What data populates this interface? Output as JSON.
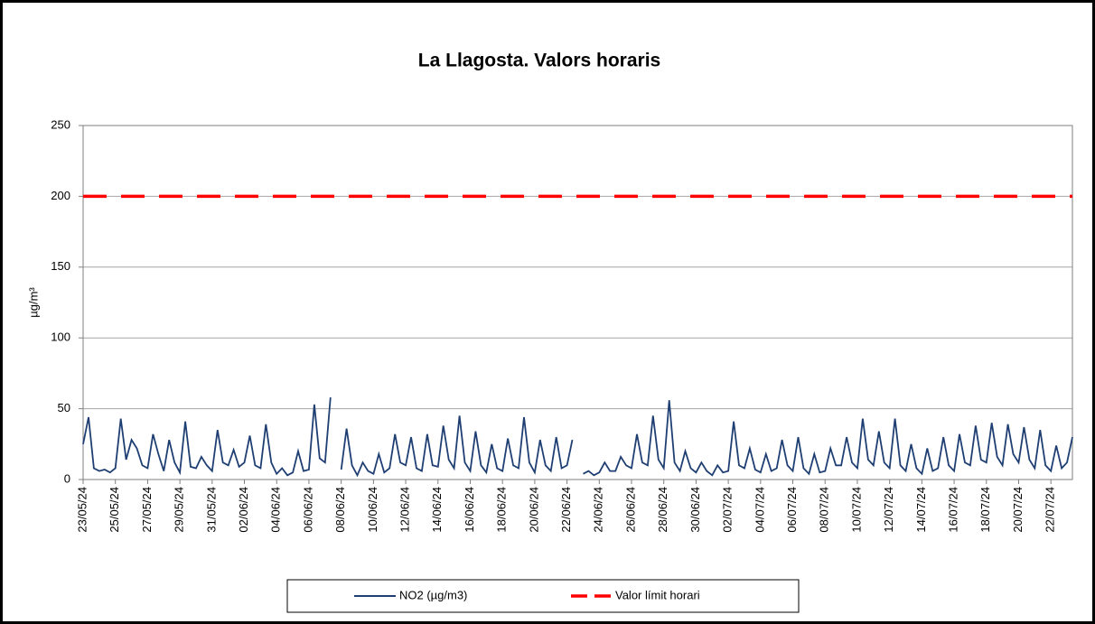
{
  "chart_data": {
    "type": "line",
    "title": "La Llagosta. Valors horaris",
    "y_label": "µg/m³",
    "categories": [
      "23/05/24",
      null,
      null,
      null,
      null,
      null,
      "25/05/24",
      null,
      null,
      null,
      null,
      null,
      "27/05/24",
      null,
      null,
      null,
      null,
      null,
      "29/05/24",
      null,
      null,
      null,
      null,
      null,
      "31/05/24",
      null,
      null,
      null,
      null,
      null,
      "02/06/24",
      null,
      null,
      null,
      null,
      null,
      "04/06/24",
      null,
      null,
      null,
      null,
      null,
      "06/06/24",
      null,
      null,
      null,
      null,
      null,
      "08/06/24",
      null,
      null,
      null,
      null,
      null,
      "10/06/24",
      null,
      null,
      null,
      null,
      null,
      "12/06/24",
      null,
      null,
      null,
      null,
      null,
      "14/06/24",
      null,
      null,
      null,
      null,
      null,
      "16/06/24",
      null,
      null,
      null,
      null,
      null,
      "18/06/24",
      null,
      null,
      null,
      null,
      null,
      "20/06/24",
      null,
      null,
      null,
      null,
      null,
      "22/06/24",
      null,
      null,
      null,
      null,
      null,
      "24/06/24",
      null,
      null,
      null,
      null,
      null,
      "26/06/24",
      null,
      null,
      null,
      null,
      null,
      "28/06/24",
      null,
      null,
      null,
      null,
      null,
      "30/06/24",
      null,
      null,
      null,
      null,
      null,
      "02/07/24",
      null,
      null,
      null,
      null,
      null,
      "04/07/24",
      null,
      null,
      null,
      null,
      null,
      "06/07/24",
      null,
      null,
      null,
      null,
      null,
      "08/07/24",
      null,
      null,
      null,
      null,
      null,
      "10/07/24",
      null,
      null,
      null,
      null,
      null,
      "12/07/24",
      null,
      null,
      null,
      null,
      null,
      "14/07/24",
      null,
      null,
      null,
      null,
      null,
      "16/07/24",
      null,
      null,
      null,
      null,
      null,
      "18/07/24",
      null,
      null,
      null,
      null,
      null,
      "20/07/24",
      null,
      null,
      null,
      null,
      null,
      "22/07/24",
      null,
      null,
      null,
      null
    ],
    "series": [
      {
        "name": "NO2 (µg/m3)",
        "color": "#1f3f73",
        "values": [
          25,
          44,
          8,
          6,
          7,
          5,
          8,
          43,
          14,
          28,
          22,
          10,
          8,
          32,
          18,
          6,
          28,
          12,
          5,
          41,
          9,
          8,
          16,
          10,
          6,
          35,
          12,
          10,
          21,
          9,
          12,
          31,
          10,
          8,
          39,
          12,
          4,
          8,
          3,
          5,
          20,
          6,
          7,
          53,
          15,
          12,
          58,
          null,
          7,
          36,
          10,
          3,
          12,
          6,
          4,
          18,
          5,
          8,
          32,
          12,
          10,
          30,
          8,
          6,
          32,
          10,
          9,
          38,
          14,
          8,
          45,
          12,
          6,
          34,
          10,
          5,
          25,
          8,
          6,
          29,
          10,
          8,
          44,
          12,
          5,
          28,
          10,
          6,
          30,
          8,
          10,
          28,
          null,
          4,
          6,
          3,
          5,
          12,
          6,
          6,
          16,
          10,
          8,
          32,
          12,
          10,
          45,
          14,
          8,
          56,
          12,
          6,
          20,
          8,
          5,
          12,
          6,
          3,
          10,
          5,
          6,
          41,
          10,
          8,
          22,
          7,
          5,
          18,
          6,
          8,
          28,
          10,
          6,
          30,
          8,
          4,
          18,
          5,
          6,
          22,
          10,
          10,
          30,
          12,
          8,
          43,
          14,
          10,
          34,
          12,
          8,
          43,
          10,
          6,
          25,
          8,
          4,
          22,
          6,
          8,
          30,
          10,
          6,
          32,
          12,
          10,
          38,
          14,
          12,
          40,
          16,
          10,
          39,
          18,
          12,
          37,
          14,
          8,
          35,
          10,
          6,
          24,
          8,
          12,
          30
        ]
      }
    ],
    "hline": {
      "name": "Valor límit horari",
      "value": 200,
      "color": "#ff0000"
    },
    "ylim": [
      0,
      250
    ],
    "yticks": [
      0,
      50,
      100,
      150,
      200,
      250
    ],
    "grid": true,
    "legend": "bottom"
  }
}
